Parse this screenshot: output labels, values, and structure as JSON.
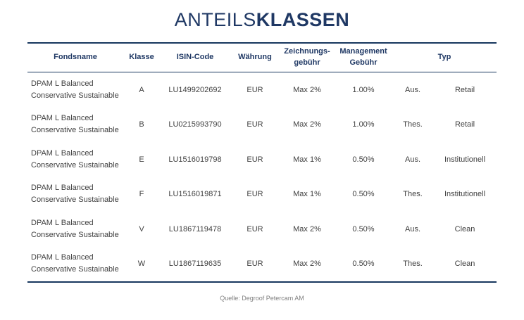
{
  "title": {
    "part1": "ANTEILS",
    "part2": "KLASSEN"
  },
  "colors": {
    "navy": "#1f3864",
    "rule": "#17375e",
    "body_text": "#404040",
    "muted": "#7f7f7f"
  },
  "table": {
    "headers": {
      "fondsname": "Fondsname",
      "klasse": "Klasse",
      "isin": "ISIN-Code",
      "waehrung": "Währung",
      "zeichnung_line1": "Zeichnungs-",
      "zeichnung_line2": "gebühr",
      "management_line1": "Management",
      "management_line2": "Gebühr",
      "typ": "Typ"
    },
    "rows": [
      {
        "fondsname": "DPAM L Balanced Conservative Sustainable",
        "klasse": "A",
        "isin": "LU1499202692",
        "waehrung": "EUR",
        "zeichnung": "Max 2%",
        "management": "1.00%",
        "ausschuettung": "Aus.",
        "typ": "Retail"
      },
      {
        "fondsname": "DPAM L Balanced Conservative Sustainable",
        "klasse": "B",
        "isin": "LU0215993790",
        "waehrung": "EUR",
        "zeichnung": "Max 2%",
        "management": "1.00%",
        "ausschuettung": "Thes.",
        "typ": "Retail"
      },
      {
        "fondsname": "DPAM L Balanced Conservative Sustainable",
        "klasse": "E",
        "isin": "LU1516019798",
        "waehrung": "EUR",
        "zeichnung": "Max 1%",
        "management": "0.50%",
        "ausschuettung": "Aus.",
        "typ": "Institutionell"
      },
      {
        "fondsname": "DPAM L Balanced Conservative Sustainable",
        "klasse": "F",
        "isin": "LU1516019871",
        "waehrung": "EUR",
        "zeichnung": "Max 1%",
        "management": "0.50%",
        "ausschuettung": "Thes.",
        "typ": "Institutionell"
      },
      {
        "fondsname": "DPAM L Balanced Conservative Sustainable",
        "klasse": "V",
        "isin": "LU1867119478",
        "waehrung": "EUR",
        "zeichnung": "Max 2%",
        "management": "0.50%",
        "ausschuettung": "Aus.",
        "typ": "Clean"
      },
      {
        "fondsname": "DPAM L Balanced Conservative Sustainable",
        "klasse": "W",
        "isin": "LU1867119635",
        "waehrung": "EUR",
        "zeichnung": "Max 2%",
        "management": "0.50%",
        "ausschuettung": "Thes.",
        "typ": "Clean"
      }
    ]
  },
  "footer": {
    "source": "Quelle: Degroof Petercam AM"
  }
}
